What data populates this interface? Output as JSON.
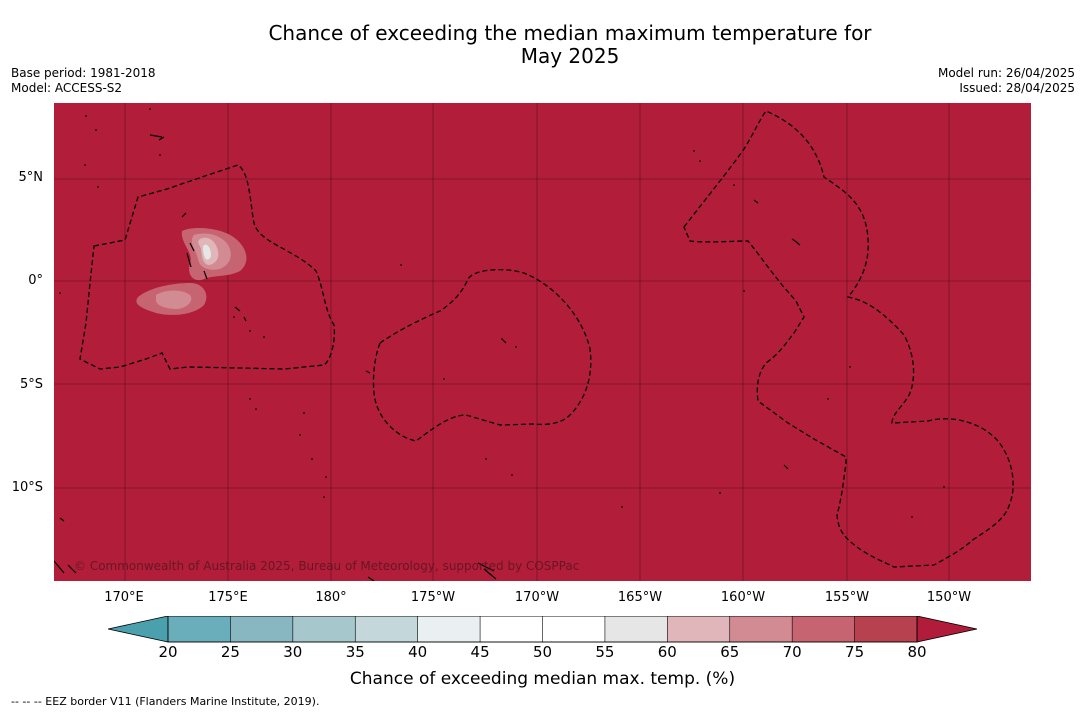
{
  "title_line1": "Chance of exceeding the median maximum temperature for",
  "title_line2": "May 2025",
  "meta_left": {
    "base_period": "Base period: 1981-2018",
    "model": "Model: ACCESS-S2"
  },
  "meta_right": {
    "model_run": "Model run: 26/04/2025",
    "issued": "Issued: 28/04/2025"
  },
  "copyright": "© Commonwealth of Australia 2025, Bureau of Meteorology, supported by COSPPac",
  "lat_labels": [
    "5°N",
    "0°",
    "5°S",
    "10°S"
  ],
  "lon_labels": [
    "170°E",
    "175°E",
    "180°",
    "175°W",
    "170°W",
    "165°W",
    "160°W",
    "155°W",
    "150°W"
  ],
  "colorbar": {
    "ticks": [
      "20",
      "25",
      "30",
      "35",
      "40",
      "45",
      "50",
      "55",
      "60",
      "65",
      "70",
      "75",
      "80"
    ],
    "under_color": "#4aa0ad",
    "colors": [
      "#6aaebb",
      "#88b7c2",
      "#a6c7cc",
      "#c4d7da",
      "#eaeff1",
      "#ffffff",
      "#ffffff",
      "#e6e6e6",
      "#e0b6bb",
      "#d38b93",
      "#c66571",
      "#b8414f"
    ],
    "over_color": "#b01c39",
    "label": "Chance of exceeding median max. temp. (%)"
  },
  "map_fill_color": "#b21d3a",
  "footnote": "--  --  -- EEZ border V11 (Flanders Marine Institute, 2019)."
}
